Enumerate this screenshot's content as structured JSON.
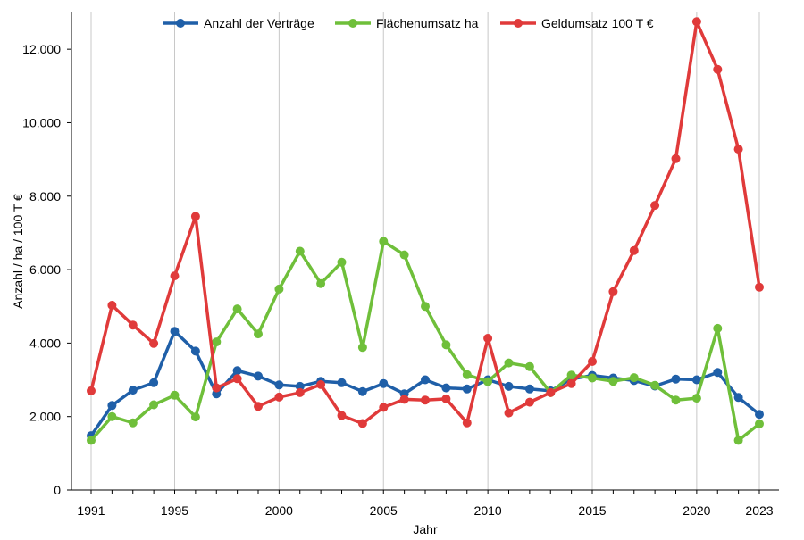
{
  "chart_data": {
    "type": "line",
    "xlabel": "Jahr",
    "ylabel": "Anzahl / ha / 100 T €",
    "xlim": [
      1991,
      2023
    ],
    "ylim": [
      0,
      13000
    ],
    "grid": "vertical",
    "legend_position": "top",
    "x_tick_labels": [
      "1991",
      "1995",
      "2000",
      "2005",
      "2010",
      "2015",
      "2020",
      "2023"
    ],
    "y_tick_labels": [
      "0",
      "2.000",
      "4.000",
      "6.000",
      "8.000",
      "10.000",
      "12.000"
    ],
    "x_ticks": [
      1991,
      1995,
      2000,
      2005,
      2010,
      2015,
      2020,
      2023
    ],
    "y_ticks": [
      0,
      2000,
      4000,
      6000,
      8000,
      10000,
      12000
    ],
    "x": [
      1991,
      1992,
      1993,
      1994,
      1995,
      1996,
      1997,
      1998,
      1999,
      2000,
      2001,
      2002,
      2003,
      2004,
      2005,
      2006,
      2007,
      2008,
      2009,
      2010,
      2011,
      2012,
      2013,
      2014,
      2015,
      2016,
      2017,
      2018,
      2019,
      2020,
      2021,
      2022,
      2023
    ],
    "series": [
      {
        "name": "Anzahl der Verträge",
        "color": "#1f5fa8",
        "values": [
          1480,
          2300,
          2720,
          2920,
          4320,
          3780,
          2620,
          3250,
          3100,
          2860,
          2820,
          2960,
          2920,
          2680,
          2900,
          2620,
          3000,
          2780,
          2750,
          3000,
          2820,
          2750,
          2700,
          3020,
          3120,
          3050,
          2980,
          2830,
          3020,
          3000,
          3200,
          2520,
          2060
        ]
      },
      {
        "name": "Flächenumsatz ha",
        "color": "#6fbf3a",
        "values": [
          1350,
          2000,
          1830,
          2320,
          2580,
          1990,
          4030,
          4930,
          4250,
          5470,
          6500,
          5620,
          6200,
          3880,
          6770,
          6400,
          5000,
          3950,
          3140,
          2950,
          3460,
          3360,
          2650,
          3130,
          3050,
          2960,
          3060,
          2850,
          2450,
          2500,
          4400,
          1350,
          1800
        ]
      },
      {
        "name": "Geldumsatz 100 T €",
        "color": "#e03a3a",
        "values": [
          2700,
          5030,
          4490,
          3990,
          5830,
          7450,
          2780,
          3030,
          2280,
          2530,
          2650,
          2870,
          2030,
          1810,
          2250,
          2470,
          2450,
          2480,
          1830,
          4130,
          2100,
          2390,
          2650,
          2900,
          3500,
          5400,
          6520,
          7750,
          9020,
          12750,
          11450,
          9280,
          5520
        ]
      }
    ]
  }
}
